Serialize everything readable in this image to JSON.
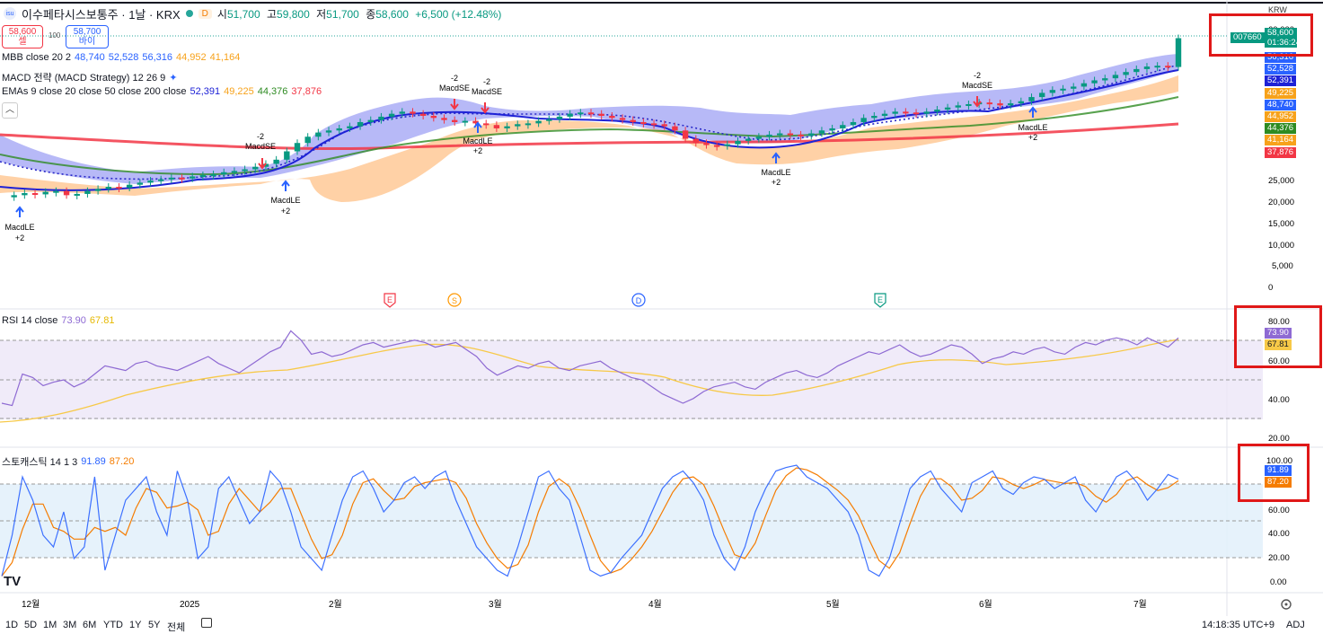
{
  "header": {
    "symbol_title": "이수페타시스보통주 · 1날 · KRX",
    "logo_text": "isu",
    "interval_badge": "D",
    "ohlc": {
      "open_label": "시",
      "open": "51,700",
      "high_label": "고",
      "high": "59,800",
      "low_label": "저",
      "low": "51,700",
      "close_label": "종",
      "close": "58,600",
      "change": "+6,500 (+12.48%)"
    }
  },
  "trade": {
    "sell_price": "58,600",
    "sell_label": "셀",
    "spread": "100",
    "buy_price": "58,700",
    "buy_label": "바이"
  },
  "indicators": {
    "mbb": {
      "label": "MBB close 20 2",
      "v1": "48,740",
      "v2": "52,528",
      "v3": "56,316",
      "v4": "44,952",
      "v5": "41,164"
    },
    "macd": {
      "label": "MACD 전략 (MACD Strategy) 12 26 9"
    },
    "emas": {
      "label": "EMAs 9 close 20 close 50 close 200 close",
      "v1": "52,391",
      "v2": "49,225",
      "v3": "44,376",
      "v4": "37,876"
    }
  },
  "price_axis": {
    "currency": "KRW",
    "ticks": [
      "60,000",
      "25,000",
      "20,000",
      "15,000",
      "10,000",
      "5,000",
      "0"
    ],
    "last_badge": {
      "code": "007660",
      "price": "58,600",
      "countdown": "01:36:24"
    },
    "value_badges": [
      {
        "text": "56,316",
        "color": "#2962ff"
      },
      {
        "text": "52,528",
        "color": "#2962ff"
      },
      {
        "text": "52,391",
        "color": "#1e22d6"
      },
      {
        "text": "49,225",
        "color": "#f7a21b"
      },
      {
        "text": "48,740",
        "color": "#2962ff"
      },
      {
        "text": "44,952",
        "color": "#f7a21b"
      },
      {
        "text": "44,376",
        "color": "#2e8b22"
      },
      {
        "text": "41,164",
        "color": "#f7a21b"
      },
      {
        "text": "37,876",
        "color": "#f23645"
      }
    ]
  },
  "signals": [
    {
      "top": "",
      "label": "MacdLE",
      "sub": "+2"
    },
    {
      "top": "-2",
      "label": "MacdSE",
      "sub": ""
    },
    {
      "top": "",
      "label": "MacdLE",
      "sub": "+2"
    },
    {
      "top": "-2",
      "label": "MacdSE",
      "sub": ""
    },
    {
      "top": "-2",
      "label": "MacdSE",
      "sub": ""
    },
    {
      "top": "",
      "label": "MacdLE",
      "sub": "+2"
    },
    {
      "top": "",
      "label": "MacdLE",
      "sub": "+2"
    },
    {
      "top": "-2",
      "label": "MacdSE",
      "sub": ""
    },
    {
      "top": "",
      "label": "MacdLE",
      "sub": "+2"
    }
  ],
  "events": [
    {
      "letter": "E",
      "color": "#f23645"
    },
    {
      "letter": "S",
      "color": "#ff9800"
    },
    {
      "letter": "D",
      "color": "#2962ff"
    },
    {
      "letter": "E",
      "color": "#089981"
    }
  ],
  "rsi": {
    "label": "RSI 14 close",
    "value": "73.90",
    "ma_value": "67.81",
    "ticks": [
      "80.00",
      "60.00",
      "40.00",
      "20.00"
    ]
  },
  "stoch": {
    "label": "스토캐스틱 14 1 3",
    "k": "91.89",
    "d": "87.20",
    "ticks": [
      "100.00",
      "80.00",
      "60.00",
      "40.00",
      "20.00",
      "0.00"
    ]
  },
  "time_axis": {
    "labels": [
      "12월",
      "2025",
      "2월",
      "3월",
      "4월",
      "5월",
      "6월",
      "7월"
    ]
  },
  "bottom_bar": {
    "timeframes": [
      "1D",
      "5D",
      "1M",
      "3M",
      "6M",
      "YTD",
      "1Y",
      "5Y",
      "전체"
    ],
    "clock": "14:18:35 UTC+9",
    "adj": "ADJ",
    "brand": "TV"
  },
  "chart_data": {
    "type": "candlestick",
    "title": "이수페타시스보통주 · 1날 · KRX",
    "last_close": 58600,
    "ohlc_last": {
      "open": 51700,
      "high": 59800,
      "low": 51700,
      "close": 58600
    },
    "close_path": [
      20500,
      21000,
      21500,
      21200,
      21800,
      22000,
      21000,
      21300,
      22000,
      22500,
      23000,
      22800,
      23500,
      24000,
      24500,
      24800,
      25200,
      25000,
      25500,
      25800,
      26000,
      26500,
      26800,
      27200,
      27800,
      28500,
      29500,
      31500,
      33500,
      35000,
      36000,
      36500,
      37000,
      37500,
      38500,
      39000,
      39800,
      40500,
      41000,
      40500,
      40000,
      39500,
      39000,
      38500,
      38800,
      38200,
      37800,
      37000,
      37500,
      38000,
      38200,
      38800,
      39200,
      39800,
      40500,
      40800,
      40500,
      40000,
      39500,
      39000,
      38500,
      38200,
      38000,
      37500,
      36500,
      34500,
      33500,
      33000,
      32800,
      33200,
      34000,
      34500,
      35000,
      35500,
      35800,
      35500,
      35200,
      35800,
      36500,
      37000,
      37800,
      38500,
      39500,
      40000,
      40500,
      41000,
      40800,
      40500,
      41000,
      41500,
      42000,
      42500,
      42800,
      43200,
      43000,
      42500,
      43000,
      43500,
      44500,
      45500,
      46200,
      46500,
      47000,
      47800,
      48500,
      49000,
      49800,
      50500,
      51200,
      51800,
      52000,
      51700,
      58600
    ],
    "ema200_range": [
      34000,
      37876
    ],
    "rsi_last": 73.9,
    "rsi_ma_last": 67.81,
    "stoch_k_last": 91.89,
    "stoch_d_last": 87.2,
    "rsi_levels": [
      70,
      50,
      30
    ],
    "stoch_levels": [
      80,
      50,
      20
    ]
  }
}
